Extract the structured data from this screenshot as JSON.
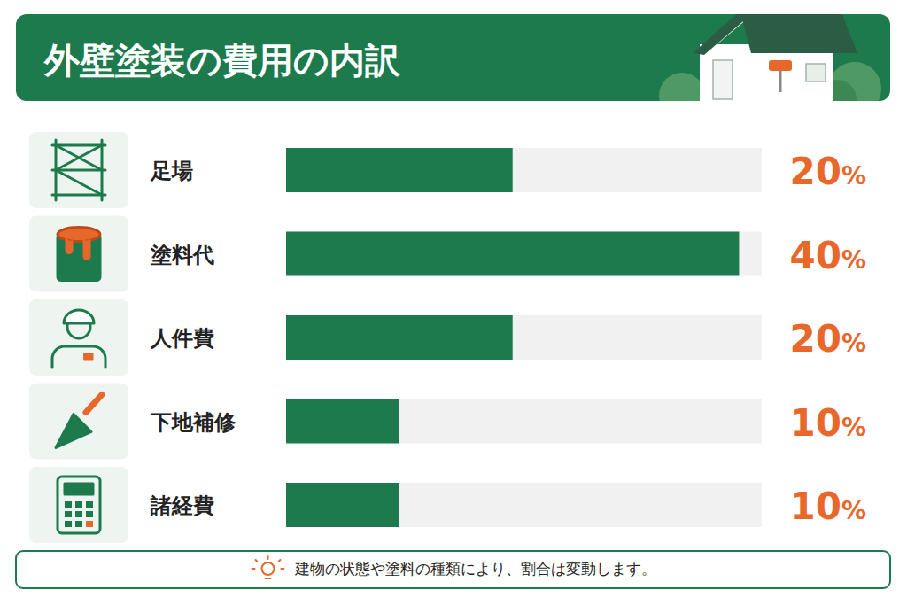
{
  "chart_data": {
    "type": "bar",
    "orientation": "horizontal",
    "title": "外壁塗装の費用の内訳",
    "categories": [
      "足場",
      "塗料代",
      "人件費",
      "下地補修",
      "諸経費"
    ],
    "values": [
      20,
      40,
      20,
      10,
      10
    ],
    "value_labels": [
      "20%",
      "40%",
      "20%",
      "10%",
      "10%"
    ],
    "data_labels": true,
    "color": "#1c7a4d",
    "xlim": [
      0,
      42
    ],
    "tick_labels": false,
    "grid": false,
    "annotations": [
      "建物の状態や塗料の種類により、割合は変動します。"
    ]
  }
}
